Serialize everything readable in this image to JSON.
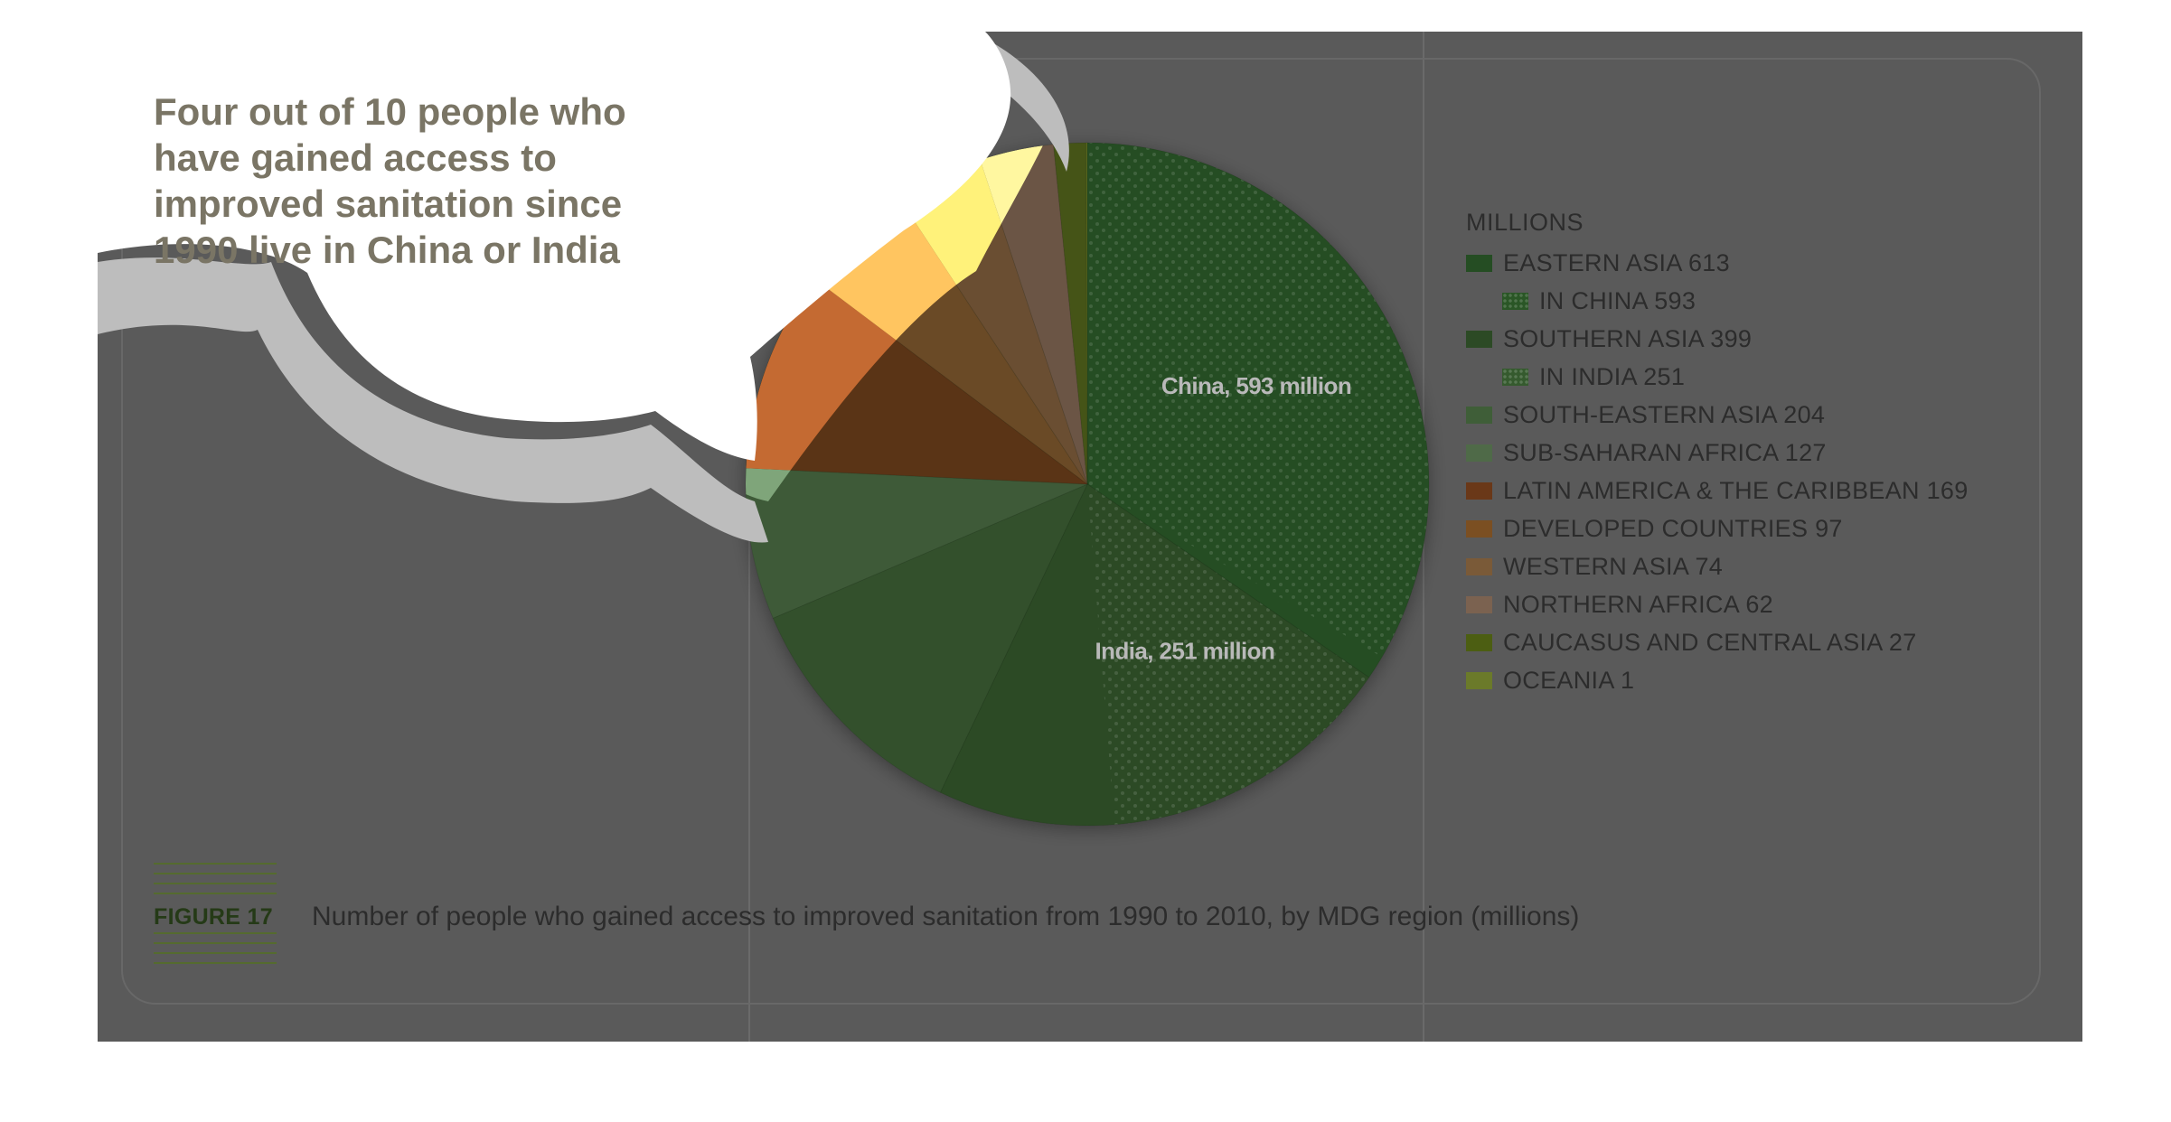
{
  "headline": "Four out of 10 people who have gained access to improved sanitation since 1990 live in China or India",
  "figure": {
    "label": "FIGURE 17",
    "caption": "Number of people who gained access to improved sanitation from 1990 to 2010, by MDG region (millions)"
  },
  "chart_data": {
    "type": "pie",
    "title": "Number of people who gained access to improved sanitation from 1990 to 2010, by MDG region (millions)",
    "legend_title": "MILLIONS",
    "legend_placement": "right",
    "slices": [
      {
        "name": "EASTERN ASIA",
        "value": 613,
        "color": "#254d23"
      },
      {
        "name": "SOUTHERN ASIA",
        "value": 399,
        "color": "#2c4a25"
      },
      {
        "name": "SOUTH-EASTERN ASIA",
        "value": 204,
        "color": "#33502c"
      },
      {
        "name": "SUB-SAHARAN AFRICA",
        "value": 127,
        "color": "#3e5a38"
      },
      {
        "name": "LATIN AMERICA & THE CARIBBEAN",
        "value": 169,
        "color": "#5a3416"
      },
      {
        "name": "DEVELOPED COUNTRIES",
        "value": 97,
        "color": "#6a4a26"
      },
      {
        "name": "WESTERN ASIA",
        "value": 74,
        "color": "#6a4e32"
      },
      {
        "name": "NORTHERN AFRICA",
        "value": 62,
        "color": "#6b5545"
      },
      {
        "name": "CAUCASUS AND CENTRAL ASIA",
        "value": 27,
        "color": "#455417"
      },
      {
        "name": "OCEANIA",
        "value": 1,
        "color": "#5d6d20"
      }
    ],
    "sub_slices": [
      {
        "name": "IN CHINA",
        "parent": "EASTERN ASIA",
        "value": 593,
        "label": "China, 593 million"
      },
      {
        "name": "IN INDIA",
        "parent": "SOUTHERN ASIA",
        "value": 251,
        "label": "India, 251 million"
      }
    ],
    "legend": [
      {
        "label": "EASTERN ASIA 613",
        "color": "#254d23",
        "indent": false,
        "dotted": false
      },
      {
        "label": "IN CHINA 593",
        "color": "#2a5626",
        "indent": true,
        "dotted": true
      },
      {
        "label": "SOUTHERN ASIA 399",
        "color": "#2c4a25",
        "indent": false,
        "dotted": false
      },
      {
        "label": "IN INDIA 251",
        "color": "#355a2e",
        "indent": true,
        "dotted": true
      },
      {
        "label": "SOUTH-EASTERN ASIA 204",
        "color": "#3f5e38",
        "indent": false,
        "dotted": false
      },
      {
        "label": "SUB-SAHARAN AFRICA 127",
        "color": "#4f6a48",
        "indent": false,
        "dotted": false
      },
      {
        "label": "LATIN AMERICA & THE CARIBBEAN 169",
        "color": "#6a3818",
        "indent": false,
        "dotted": false
      },
      {
        "label": "DEVELOPED COUNTRIES 97",
        "color": "#7b4f22",
        "indent": false,
        "dotted": false
      },
      {
        "label": "WESTERN ASIA 74",
        "color": "#7a5a38",
        "indent": false,
        "dotted": false
      },
      {
        "label": "NORTHERN AFRICA 62",
        "color": "#7b6250",
        "indent": false,
        "dotted": false
      },
      {
        "label": "CAUCASUS AND CENTRAL ASIA 27",
        "color": "#4c5e12",
        "indent": false,
        "dotted": false
      },
      {
        "label": "OCEANIA 1",
        "color": "#6b7a2a",
        "indent": false,
        "dotted": false
      }
    ]
  }
}
